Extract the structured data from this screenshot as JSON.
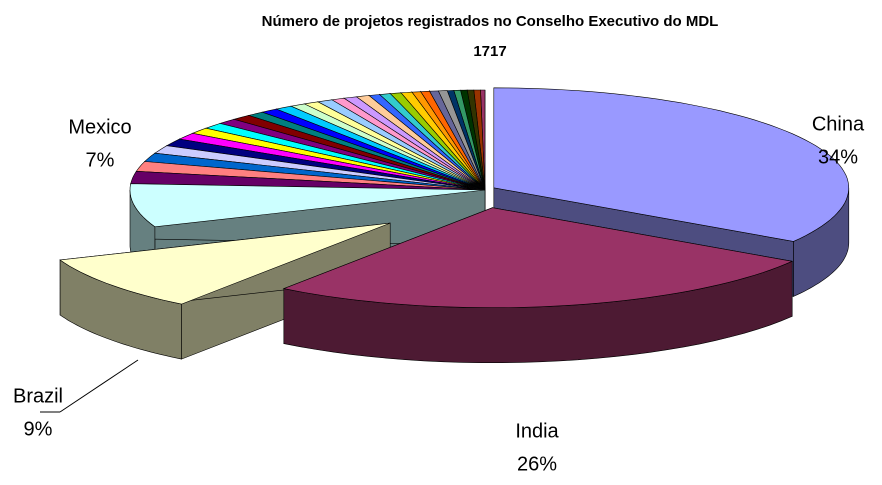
{
  "chart_data": {
    "type": "pie3d",
    "title": "Número de projetos registrados no Conselho Executivo do MDL",
    "subtitle": "1717",
    "categories": [
      "China",
      "India",
      "Brazil",
      "Mexico",
      null,
      null,
      null,
      null,
      null,
      null,
      null,
      null,
      null,
      null,
      null,
      null,
      null,
      null,
      null,
      null,
      null,
      null,
      null,
      null,
      null,
      null,
      null,
      null,
      null,
      null,
      null,
      null,
      null,
      null,
      null,
      null,
      null
    ],
    "values": [
      34,
      26,
      9,
      7,
      2,
      1.6,
      1.4,
      1.3,
      1.2,
      1.1,
      1,
      1,
      0.9,
      0.9,
      0.8,
      0.8,
      0.8,
      0.7,
      0.7,
      0.7,
      0.6,
      0.6,
      0.6,
      0.5,
      0.5,
      0.5,
      0.5,
      0.4,
      0.4,
      0.4,
      0.4,
      0.3,
      0.3,
      0.3,
      0.3,
      0.3,
      0.2
    ],
    "value_labels": [
      "34%",
      "26%",
      "9%",
      "7%",
      null,
      null,
      null,
      null,
      null,
      null,
      null,
      null,
      null,
      null,
      null,
      null,
      null,
      null,
      null,
      null,
      null,
      null,
      null,
      null,
      null,
      null,
      null,
      null,
      null,
      null,
      null,
      null,
      null,
      null,
      null,
      null,
      null
    ],
    "colors": [
      "#9999FF",
      "#993366",
      "#FFFFCC",
      "#CCFFFF",
      "#660066",
      "#FF8080",
      "#0066CC",
      "#CCCCFF",
      "#000080",
      "#FF00FF",
      "#FFFF00",
      "#00FFFF",
      "#800080",
      "#800000",
      "#008080",
      "#0000FF",
      "#00CCFF",
      "#CCFFCC",
      "#FFFF99",
      "#99CCFF",
      "#FF99CC",
      "#CC99FF",
      "#FFCC99",
      "#3366FF",
      "#33CCCC",
      "#99CC00",
      "#FFCC00",
      "#FF9900",
      "#FF6600",
      "#666699",
      "#969696",
      "#003366",
      "#339966",
      "#003300",
      "#333300",
      "#993300",
      "#993366"
    ]
  }
}
